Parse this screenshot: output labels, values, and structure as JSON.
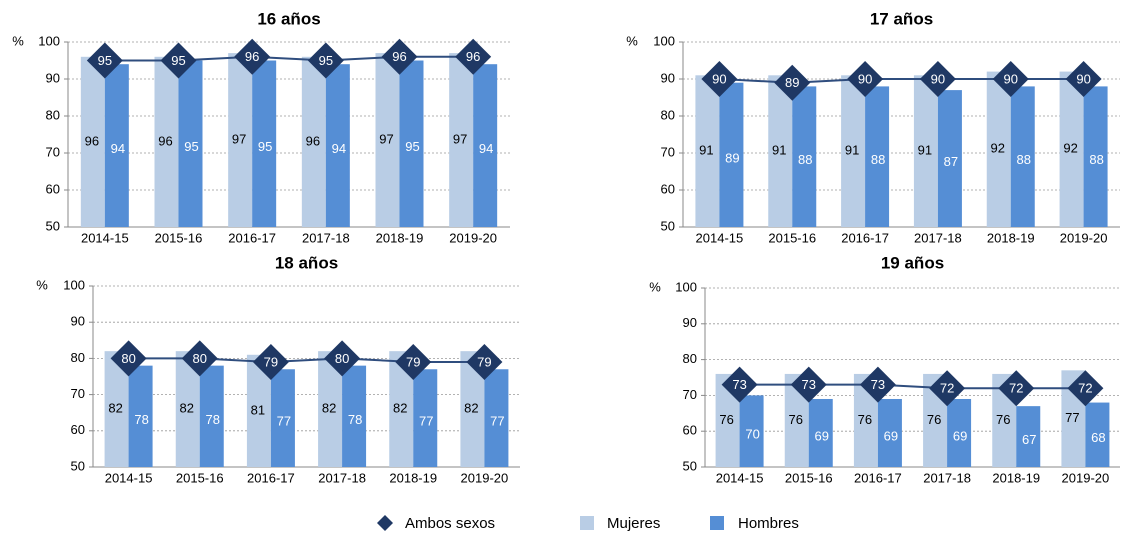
{
  "chart_data": [
    {
      "type": "bar",
      "title": "16 años",
      "y_label": "%",
      "categories": [
        "2014-15",
        "2015-16",
        "2016-17",
        "2017-18",
        "2018-19",
        "2019-20"
      ],
      "series": [
        {
          "name": "Ambos sexos",
          "type": "line",
          "color": "#1f3864",
          "values": [
            95,
            95,
            96,
            95,
            96,
            96
          ]
        },
        {
          "name": "Mujeres",
          "type": "bar",
          "color": "#b9cde5",
          "values": [
            96,
            96,
            97,
            96,
            97,
            97
          ]
        },
        {
          "name": "Hombres",
          "type": "bar",
          "color": "#558ed5",
          "values": [
            94,
            95,
            95,
            94,
            95,
            94
          ]
        }
      ],
      "ylim": [
        50,
        100
      ],
      "yticks": [
        50,
        60,
        70,
        80,
        90,
        100
      ],
      "grid": true
    },
    {
      "type": "bar",
      "title": "17 años",
      "y_label": "%",
      "categories": [
        "2014-15",
        "2015-16",
        "2016-17",
        "2017-18",
        "2018-19",
        "2019-20"
      ],
      "series": [
        {
          "name": "Ambos sexos",
          "type": "line",
          "color": "#1f3864",
          "values": [
            90,
            89,
            90,
            90,
            90,
            90
          ]
        },
        {
          "name": "Mujeres",
          "type": "bar",
          "color": "#b9cde5",
          "values": [
            91,
            91,
            91,
            91,
            92,
            92
          ]
        },
        {
          "name": "Hombres",
          "type": "bar",
          "color": "#558ed5",
          "values": [
            89,
            88,
            88,
            87,
            88,
            88
          ]
        }
      ],
      "ylim": [
        50,
        100
      ],
      "yticks": [
        50,
        60,
        70,
        80,
        90,
        100
      ],
      "grid": true
    },
    {
      "type": "bar",
      "title": "18 años",
      "y_label": "%",
      "categories": [
        "2014-15",
        "2015-16",
        "2016-17",
        "2017-18",
        "2018-19",
        "2019-20"
      ],
      "series": [
        {
          "name": "Ambos sexos",
          "type": "line",
          "color": "#1f3864",
          "values": [
            80,
            80,
            79,
            80,
            79,
            79
          ]
        },
        {
          "name": "Mujeres",
          "type": "bar",
          "color": "#b9cde5",
          "values": [
            82,
            82,
            81,
            82,
            82,
            82
          ]
        },
        {
          "name": "Hombres",
          "type": "bar",
          "color": "#558ed5",
          "values": [
            78,
            78,
            77,
            78,
            77,
            77
          ]
        }
      ],
      "ylim": [
        50,
        100
      ],
      "yticks": [
        50,
        60,
        70,
        80,
        90,
        100
      ],
      "grid": true
    },
    {
      "type": "bar",
      "title": "19 años",
      "y_label": "%",
      "categories": [
        "2014-15",
        "2015-16",
        "2016-17",
        "2017-18",
        "2018-19",
        "2019-20"
      ],
      "series": [
        {
          "name": "Ambos sexos",
          "type": "line",
          "color": "#1f3864",
          "values": [
            73,
            73,
            73,
            72,
            72,
            72
          ]
        },
        {
          "name": "Mujeres",
          "type": "bar",
          "color": "#b9cde5",
          "values": [
            76,
            76,
            76,
            76,
            76,
            77
          ]
        },
        {
          "name": "Hombres",
          "type": "bar",
          "color": "#558ed5",
          "values": [
            70,
            69,
            69,
            69,
            67,
            68
          ]
        }
      ],
      "ylim": [
        50,
        100
      ],
      "yticks": [
        50,
        60,
        70,
        80,
        90,
        100
      ],
      "grid": true
    }
  ]
}
